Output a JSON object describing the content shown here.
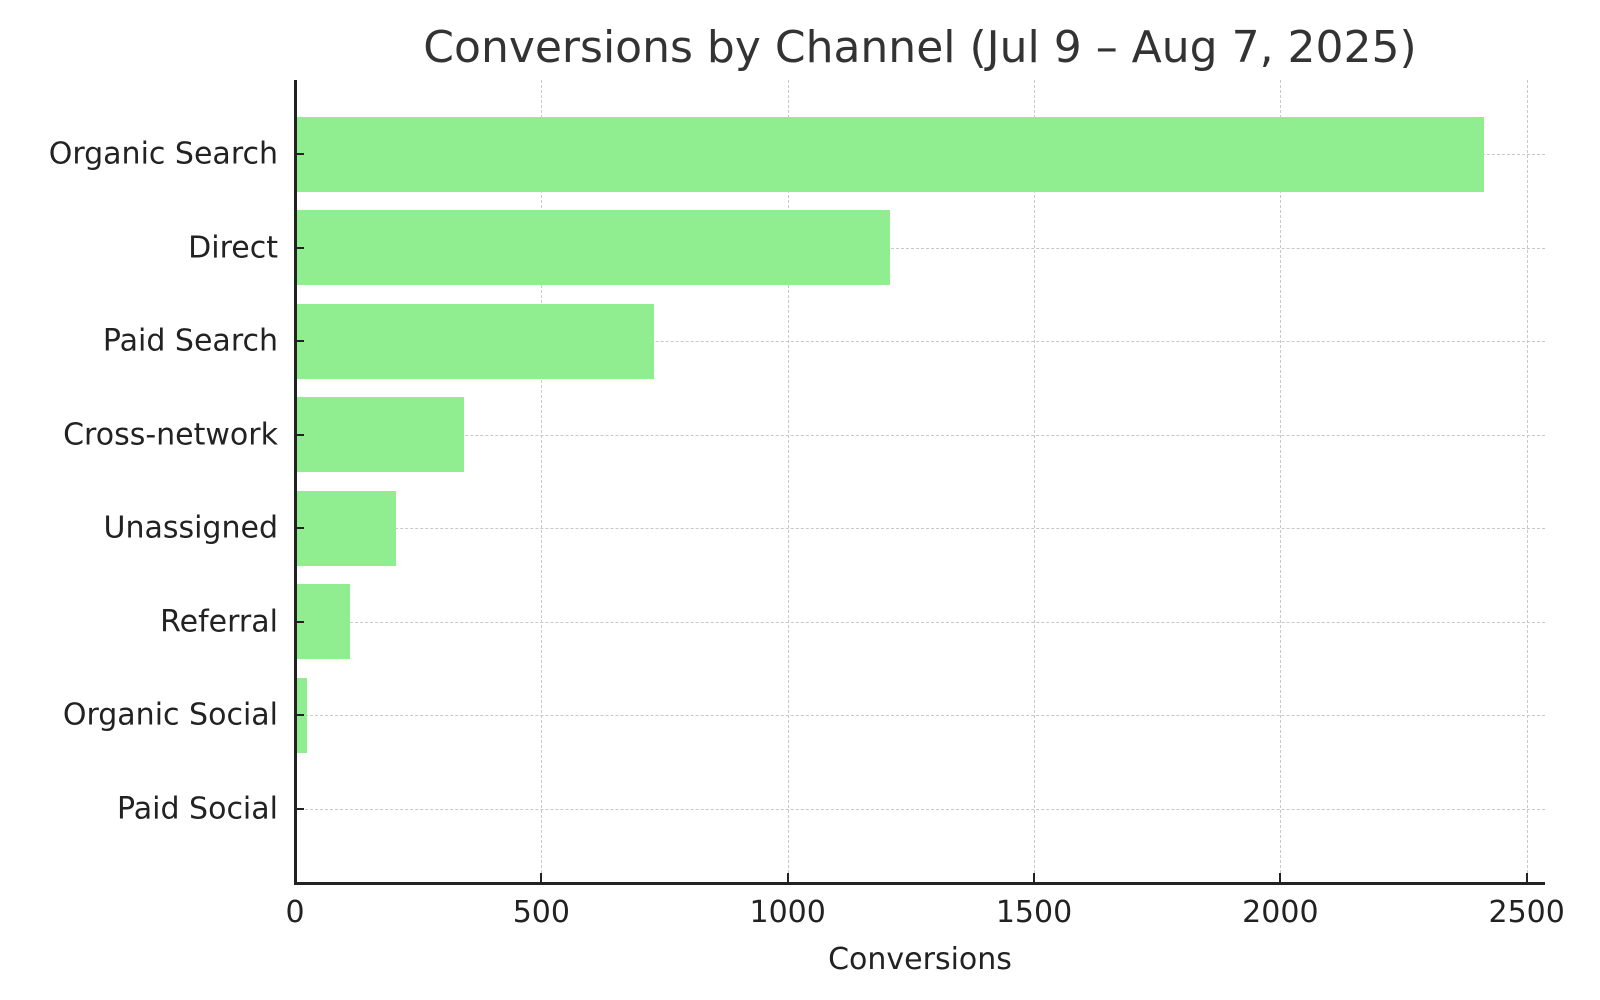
{
  "chart_data": {
    "type": "bar",
    "orientation": "horizontal",
    "title": "Conversions by Channel (Jul 9 – Aug 7, 2025)",
    "xlabel": "Conversions",
    "ylabel": "",
    "categories": [
      "Organic Search",
      "Direct",
      "Paid Search",
      "Cross-network",
      "Unassigned",
      "Referral",
      "Organic Social",
      "Paid Social"
    ],
    "values": [
      2413,
      1208,
      729,
      343,
      206,
      112,
      24,
      4
    ],
    "xlim": [
      0,
      2537
    ],
    "xticks": [
      0,
      500,
      1000,
      1500,
      2000,
      2500
    ],
    "xtick_labels": [
      "0",
      "500",
      "1000",
      "1500",
      "2000",
      "2500"
    ],
    "grid": true,
    "grid_style": "dashed",
    "legend": null,
    "bar_color": "#90ee90",
    "paid_social_bar_color": "#228b22"
  }
}
